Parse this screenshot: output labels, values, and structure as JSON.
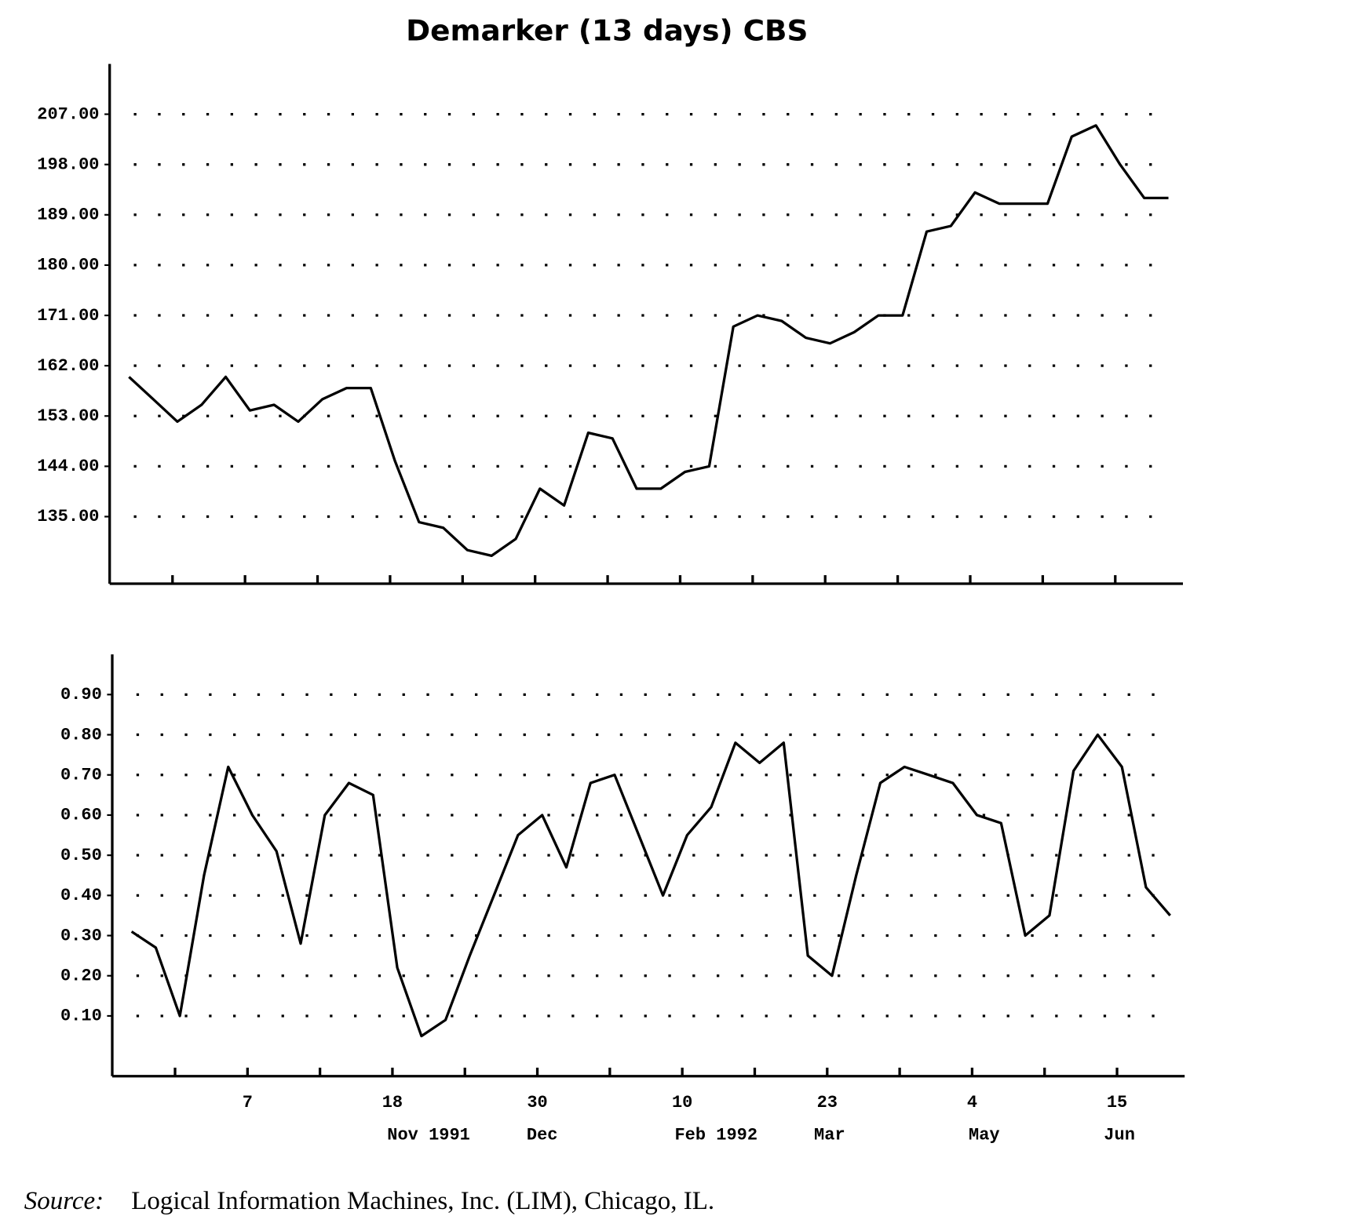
{
  "title": "Demarker (13 days) CBS",
  "source": {
    "prefix": "Source:",
    "text": "Logical Information Machines, Inc. (LIM), Chicago, IL."
  },
  "chart_data": [
    {
      "type": "line",
      "color": "#000000",
      "grid": true,
      "x": [
        4,
        9,
        14,
        19,
        24,
        29,
        34,
        39,
        44,
        49,
        54,
        59,
        64,
        69,
        74,
        79,
        84,
        89,
        94,
        99,
        104,
        109,
        114,
        119,
        124,
        129,
        134,
        139,
        144,
        149,
        154,
        159,
        164,
        169,
        174,
        179,
        184,
        189,
        194,
        199,
        204,
        209,
        214,
        219
      ],
      "values": [
        160,
        156,
        152,
        155,
        160,
        154,
        155,
        152,
        156,
        158,
        158,
        145,
        134,
        133,
        129,
        128,
        131,
        140,
        137,
        150,
        149,
        140,
        140,
        143,
        144,
        169,
        171,
        170,
        167,
        166,
        168,
        171,
        171,
        186,
        187,
        193,
        191,
        191,
        191,
        203,
        205,
        198,
        192,
        192
      ],
      "xlim": [
        0,
        222
      ],
      "xticks": [
        13,
        28,
        43,
        58,
        73,
        88,
        103,
        118,
        133,
        148,
        163,
        178,
        193,
        208
      ],
      "ylim": [
        123,
        216
      ],
      "yticks": [
        {
          "value": 135,
          "label": "135.00"
        },
        {
          "value": 144,
          "label": "144.00"
        },
        {
          "value": 153,
          "label": "153.00"
        },
        {
          "value": 162,
          "label": "162.00"
        },
        {
          "value": 171,
          "label": "171.00"
        },
        {
          "value": 180,
          "label": "180.00"
        },
        {
          "value": 189,
          "label": "189.00"
        },
        {
          "value": 198,
          "label": "198.00"
        },
        {
          "value": 207,
          "label": "207.00"
        }
      ]
    },
    {
      "type": "line",
      "color": "#000000",
      "grid": true,
      "x": [
        4,
        9,
        14,
        19,
        24,
        29,
        34,
        39,
        44,
        49,
        54,
        59,
        64,
        69,
        74,
        79,
        84,
        89,
        94,
        99,
        104,
        109,
        114,
        119,
        124,
        129,
        134,
        139,
        144,
        149,
        154,
        159,
        164,
        169,
        174,
        179,
        184,
        189,
        194,
        199,
        204,
        209,
        214,
        219
      ],
      "values": [
        0.31,
        0.27,
        0.1,
        0.45,
        0.72,
        0.6,
        0.51,
        0.28,
        0.6,
        0.68,
        0.65,
        0.22,
        0.05,
        0.09,
        0.25,
        0.4,
        0.55,
        0.6,
        0.47,
        0.68,
        0.7,
        0.55,
        0.4,
        0.55,
        0.62,
        0.78,
        0.73,
        0.78,
        0.25,
        0.2,
        0.45,
        0.68,
        0.72,
        0.7,
        0.68,
        0.6,
        0.58,
        0.3,
        0.35,
        0.71,
        0.8,
        0.72,
        0.42,
        0.35
      ],
      "xlim": [
        0,
        222
      ],
      "xticks": [
        13,
        {
          "value": 28,
          "label": "7"
        },
        43,
        {
          "value": 58,
          "label": "18"
        },
        73,
        {
          "value": 88,
          "label": "30"
        },
        103,
        {
          "value": 118,
          "label": "10"
        },
        133,
        {
          "value": 148,
          "label": "23"
        },
        163,
        {
          "value": 178,
          "label": "4"
        },
        193,
        {
          "value": 208,
          "label": "15"
        }
      ],
      "x_sublabels": [
        {
          "value": 65.5,
          "label": "Nov 1991"
        },
        {
          "value": 89,
          "label": "Dec"
        },
        {
          "value": 125,
          "label": "Feb 1992"
        },
        {
          "value": 148.5,
          "label": "Mar"
        },
        {
          "value": 180.5,
          "label": "May"
        },
        {
          "value": 208.5,
          "label": "Jun"
        }
      ],
      "ylim": [
        -0.05,
        1.0
      ],
      "yticks": [
        {
          "value": 0.1,
          "label": "0.10"
        },
        {
          "value": 0.2,
          "label": "0.20"
        },
        {
          "value": 0.3,
          "label": "0.30"
        },
        {
          "value": 0.4,
          "label": "0.40"
        },
        {
          "value": 0.5,
          "label": "0.50"
        },
        {
          "value": 0.6,
          "label": "0.60"
        },
        {
          "value": 0.7,
          "label": "0.70"
        },
        {
          "value": 0.8,
          "label": "0.80"
        },
        {
          "value": 0.9,
          "label": "0.90"
        }
      ]
    }
  ]
}
